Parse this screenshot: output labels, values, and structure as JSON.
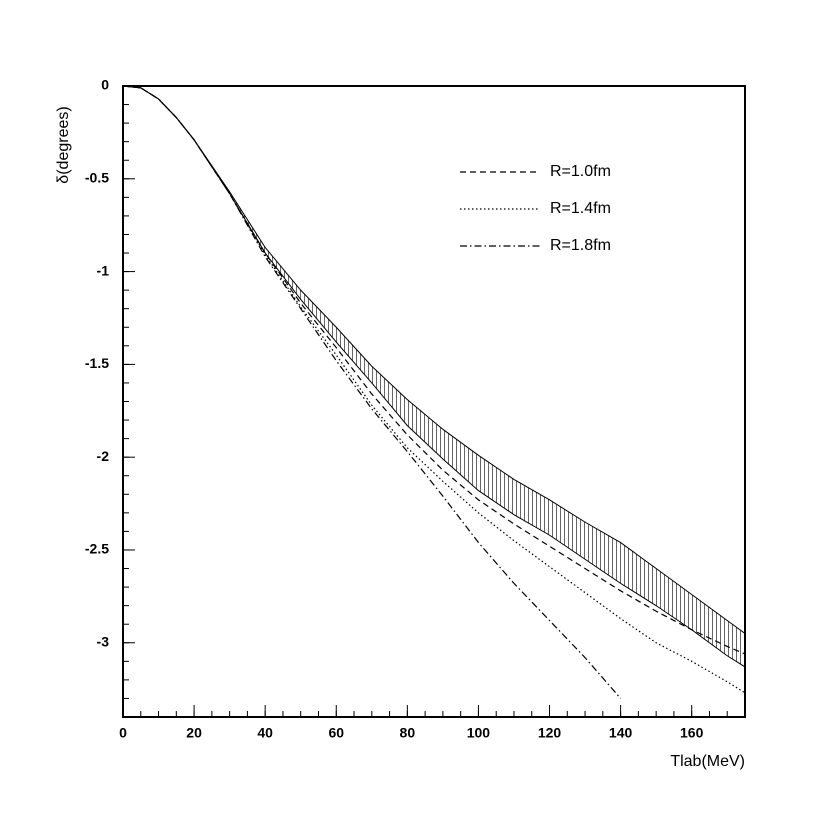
{
  "chart_data": {
    "type": "line",
    "x_label": "Tlab(MeV)",
    "y_label": "δ(degrees)",
    "x": [
      0,
      5,
      10,
      15,
      20,
      30,
      40,
      50,
      60,
      70,
      80,
      90,
      100,
      110,
      120,
      130,
      140,
      150,
      160,
      170,
      175
    ],
    "band": {
      "color": "#000000",
      "upper": [
        0,
        -0.01,
        -0.07,
        -0.17,
        -0.29,
        -0.57,
        -0.87,
        -1.1,
        -1.3,
        -1.51,
        -1.69,
        -1.85,
        -1.99,
        -2.12,
        -2.23,
        -2.35,
        -2.46,
        -2.6,
        -2.74,
        -2.88,
        -2.95
      ],
      "lower": [
        0,
        -0.01,
        -0.07,
        -0.17,
        -0.29,
        -0.58,
        -0.9,
        -1.15,
        -1.38,
        -1.6,
        -1.83,
        -2.01,
        -2.18,
        -2.31,
        -2.42,
        -2.55,
        -2.68,
        -2.8,
        -2.93,
        -3.07,
        -3.13
      ]
    },
    "series": [
      {
        "name": "R=1.0fm",
        "color": "#000000",
        "dash": "6 4",
        "values": [
          0,
          -0.01,
          -0.07,
          -0.17,
          -0.29,
          -0.58,
          -0.9,
          -1.17,
          -1.41,
          -1.66,
          -1.88,
          -2.07,
          -2.23,
          -2.36,
          -2.48,
          -2.6,
          -2.72,
          -2.83,
          -2.93,
          -3.02,
          -3.06
        ]
      },
      {
        "name": "R=1.4fm",
        "color": "#000000",
        "dash": "1.5 2.5",
        "values": [
          0,
          -0.01,
          -0.07,
          -0.17,
          -0.29,
          -0.58,
          -0.91,
          -1.19,
          -1.45,
          -1.72,
          -1.95,
          -2.13,
          -2.3,
          -2.45,
          -2.59,
          -2.73,
          -2.87,
          -3.0,
          -3.1,
          -3.21,
          -3.27
        ]
      },
      {
        "name": "R=1.8fm",
        "color": "#000000",
        "dash": "7 3 1.5 3",
        "values": [
          0,
          -0.01,
          -0.07,
          -0.17,
          -0.29,
          -0.58,
          -0.92,
          -1.2,
          -1.48,
          -1.74,
          -1.97,
          -2.21,
          -2.46,
          -2.68,
          -2.88,
          -3.08,
          -3.3,
          null,
          null,
          null,
          null
        ]
      }
    ],
    "xlim": [
      0,
      175
    ],
    "xticks": [
      0,
      20,
      40,
      60,
      80,
      100,
      120,
      140,
      160
    ],
    "x_minor_step": 5,
    "ylim": [
      -3.4,
      0
    ],
    "yticks": [
      0,
      -0.5,
      -1,
      -1.5,
      -2,
      -2.5,
      -3
    ],
    "y_minor_step": 0.1,
    "legend": "upper right"
  }
}
